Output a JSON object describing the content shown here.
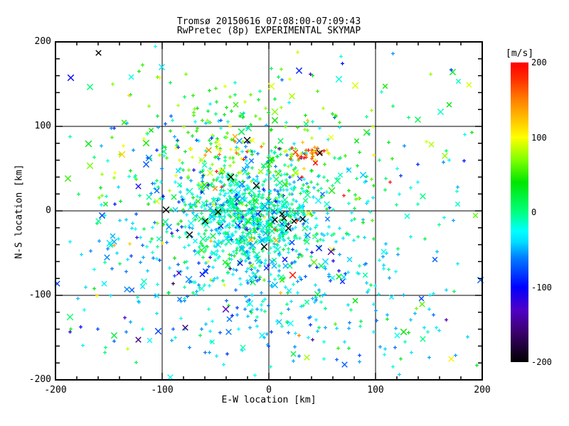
{
  "chart_data": {
    "type": "scatter",
    "title": "Tromsø 20150616 07:08:00-07:09:43",
    "subtitle": "RwPretec (8p) EXPERIMENTAL SKYMAP",
    "xlabel": "E-W location [km]",
    "ylabel": "N-S location [km]",
    "xlim": [
      -200,
      200
    ],
    "ylim": [
      -200,
      200
    ],
    "xticks": [
      -200,
      -100,
      0,
      100,
      200
    ],
    "yticks": [
      200,
      100,
      0,
      -100,
      -200
    ],
    "minor_tick_step_km": 20,
    "gridlines_km": [
      -100,
      0,
      100
    ],
    "grid": true,
    "legend": "colorbar-right",
    "colorbar": {
      "unit": "[m/s]",
      "min": -200,
      "max": 200,
      "ticks": [
        200,
        100,
        0,
        -100,
        -200
      ]
    },
    "colormap_stops": [
      [
        -200,
        "#000000"
      ],
      [
        -160,
        "#3c006e"
      ],
      [
        -130,
        "#5000c8"
      ],
      [
        -100,
        "#0000ff"
      ],
      [
        -60,
        "#0080ff"
      ],
      [
        -40,
        "#00dcff"
      ],
      [
        -25,
        "#00ffff"
      ],
      [
        0,
        "#00ff80"
      ],
      [
        40,
        "#00e600"
      ],
      [
        70,
        "#80ff00"
      ],
      [
        100,
        "#ffff00"
      ],
      [
        150,
        "#ff8000"
      ],
      [
        180,
        "#ff2800"
      ],
      [
        200,
        "#ff0000"
      ]
    ],
    "point_markers": [
      "plus",
      "x"
    ],
    "seed": 1337,
    "clusters": [
      {
        "name": "dense-core",
        "n": 650,
        "cx": -15,
        "cy": -8,
        "sx": 30,
        "sy": 30,
        "v": -18,
        "sv": 28,
        "xFrac": 0.16,
        "uniform": false
      },
      {
        "name": "central-halo",
        "n": 420,
        "cx": -10,
        "cy": -5,
        "sx": 70,
        "sy": 62,
        "v": -20,
        "sv": 35,
        "xFrac": 0.15,
        "uniform": false
      },
      {
        "name": "upper-green-field",
        "n": 170,
        "cx": -15,
        "cy": 85,
        "sx": 75,
        "sy": 45,
        "v": 55,
        "sv": 25,
        "xFrac": 0.2,
        "uniform": false
      },
      {
        "name": "lower-cyan-field",
        "n": 190,
        "cx": 25,
        "cy": -115,
        "sx": 85,
        "sy": 45,
        "v": -45,
        "sv": 18,
        "xFrac": 0.12,
        "uniform": false
      },
      {
        "name": "left-cyan-band",
        "n": 70,
        "cx": -120,
        "cy": -30,
        "sx": 38,
        "sy": 65,
        "v": -45,
        "sv": 22,
        "xFrac": 0.2,
        "uniform": false
      },
      {
        "name": "fast-hotspot-right",
        "n": 40,
        "cx": 37,
        "cy": 68,
        "sx": 9,
        "sy": 6,
        "v": 140,
        "sv": 45,
        "xFrac": 0.08,
        "uniform": false
      },
      {
        "name": "fast-hotspot-left",
        "n": 22,
        "cx": -42,
        "cy": 72,
        "sx": 14,
        "sy": 9,
        "v": 115,
        "sv": 40,
        "xFrac": 0.08,
        "uniform": false
      },
      {
        "name": "wide-sparse",
        "n": 140,
        "cx": 0,
        "cy": 0,
        "sx": 195,
        "sy": 190,
        "v": -5,
        "sv": 55,
        "xFrac": 0.3,
        "uniform": true
      },
      {
        "name": "yellow-sprinkle",
        "n": 25,
        "cx": -60,
        "cy": 25,
        "sx": 55,
        "sy": 55,
        "v": 100,
        "sv": 20,
        "xFrac": 0.25,
        "uniform": false
      },
      {
        "name": "deep-blue-sprinkle",
        "n": 30,
        "cx": -25,
        "cy": -55,
        "sx": 70,
        "sy": 60,
        "v": -115,
        "sv": 25,
        "xFrac": 0.3,
        "uniform": false
      },
      {
        "name": "red-singles",
        "n": 8,
        "cx": 40,
        "cy": -30,
        "sx": 90,
        "sy": 90,
        "v": 185,
        "sv": 12,
        "xFrac": 0.1,
        "uniform": true
      }
    ],
    "black_x_points": [
      [
        -160,
        187
      ],
      [
        -97,
        2
      ],
      [
        -60,
        -12
      ],
      [
        14,
        -8
      ],
      [
        23,
        -12
      ],
      [
        31,
        -9
      ],
      [
        -21,
        84
      ],
      [
        47,
        69
      ],
      [
        -36,
        40
      ],
      [
        -5,
        -42
      ],
      [
        12,
        -3
      ],
      [
        -75,
        -28
      ],
      [
        18,
        -20
      ],
      [
        -48,
        -1
      ],
      [
        5,
        -10
      ],
      [
        -12,
        30
      ]
    ]
  }
}
